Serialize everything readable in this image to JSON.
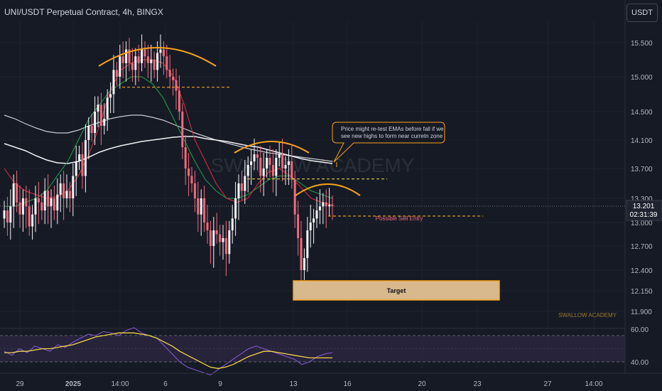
{
  "header": {
    "title": "UNI/USDT Perpetual Contract, 4h, BINGX",
    "currency_button": "USDT"
  },
  "watermark": "SWALLOW ACADEMY",
  "corner_brand": "SWALLOW ACADEMY",
  "annotations": {
    "callout": [
      "Price might re-test EMAs before fall if we",
      "see new highs to form near curretn zone"
    ],
    "sell_entry_label": "Possible Sell Entry",
    "target_label": "Target"
  },
  "price_tag": {
    "price": "13.201",
    "countdown": "02:31:39"
  },
  "colors": {
    "background": "#161a25",
    "up_candle": "#f5f6f7",
    "down_candle": "#f06a7c",
    "ema_fast": "#e3303f",
    "ema_mid": "#26a14a",
    "ema_slow": "#eef0f2",
    "arc": "#f7a21b",
    "target_fill": "#d8b98e",
    "target_border": "#f7a21b",
    "rsi": "#8a5bd8",
    "rsi_ma": "#f0d34a"
  },
  "chart_data": {
    "type": "candlestick",
    "timeframe": "4h",
    "symbol": "UNI/USDT Perpetual Contract",
    "exchange": "BINGX",
    "y_ticks": [
      "15.500",
      "15.000",
      "14.500",
      "14.100",
      "13.700",
      "13.300",
      "13.000",
      "12.700",
      "12.400",
      "12.150",
      "11.900"
    ],
    "x_ticks": [
      "29",
      "2025",
      "14:00",
      "6",
      "9",
      "13",
      "16",
      "20",
      "23",
      "27",
      "14:00"
    ],
    "last_price": 13.201,
    "levels": {
      "double_top_neckline": 14.85,
      "right_top_level": 13.56,
      "possible_sell_entry": 13.08,
      "target_zone": [
        12.08,
        12.28
      ]
    },
    "rsi_panel": {
      "ticks": [
        "60.00",
        "40.00"
      ],
      "upper": 60,
      "lower": 40
    },
    "close_path": [
      13.15,
      13.0,
      13.2,
      13.5,
      13.25,
      13.1,
      13.3,
      13.2,
      12.95,
      13.1,
      13.3,
      13.25,
      13.15,
      13.4,
      13.2,
      13.3,
      13.15,
      13.35,
      13.5,
      13.3,
      13.4,
      13.3,
      13.6,
      13.8,
      13.9,
      13.6,
      14.1,
      14.3,
      14.2,
      14.5,
      14.6,
      14.3,
      14.4,
      14.7,
      14.75,
      15.1,
      15.0,
      15.3,
      15.2,
      15.4,
      15.2,
      15.1,
      15.3,
      15.2,
      15.4,
      15.3,
      15.2,
      15.25,
      15.1,
      15.35,
      15.4,
      15.3,
      15.1,
      15.0,
      14.95,
      14.8,
      14.5,
      14.0,
      13.7,
      13.6,
      13.5,
      13.3,
      13.1,
      13.3,
      13.0,
      12.9,
      12.7,
      12.9,
      12.85,
      12.75,
      12.8,
      12.6,
      12.9,
      13.05,
      13.3,
      13.5,
      13.4,
      13.6,
      13.75,
      13.8,
      13.9,
      13.85,
      13.6,
      13.7,
      13.85,
      13.75,
      13.6,
      13.85,
      13.9,
      13.7,
      13.75,
      13.8,
      13.55,
      13.1,
      12.8,
      12.4,
      12.55,
      12.9,
      13.0,
      13.05,
      13.15,
      13.2,
      13.25,
      13.2,
      13.22,
      13.201
    ],
    "ema_fast_path": [
      13.7,
      13.5,
      13.4,
      13.35,
      13.3,
      13.32,
      13.4,
      13.6,
      13.9,
      14.3,
      14.8,
      15.1,
      15.2,
      15.25,
      15.25,
      15.2,
      15.0,
      14.6,
      14.1,
      13.8,
      13.5,
      13.3,
      13.25,
      13.3,
      13.5,
      13.65,
      13.7,
      13.6,
      13.45,
      13.3,
      13.25,
      13.22
    ],
    "ema_mid_path": [
      13.2,
      13.2,
      13.25,
      13.3,
      13.4,
      13.6,
      13.8,
      14.1,
      14.4,
      14.6,
      14.8,
      14.9,
      15.0,
      15.0,
      14.9,
      14.7,
      14.4,
      14.1,
      13.8,
      13.55,
      13.4,
      13.3,
      13.3,
      13.35,
      13.45,
      13.55,
      13.6,
      13.6,
      13.5,
      13.4,
      13.35,
      13.3
    ],
    "ema_slow_path": [
      14.05,
      14.0,
      13.95,
      13.88,
      13.82,
      13.78,
      13.77,
      13.8,
      13.86,
      13.93,
      13.98,
      14.02,
      14.05,
      14.08,
      14.1,
      14.12,
      14.14,
      14.15,
      14.15,
      14.12,
      14.1,
      14.08,
      14.05,
      14.02,
      14.0,
      13.96,
      13.92,
      13.88,
      13.84,
      13.81,
      13.79,
      13.77
    ],
    "ema_200_path": [
      14.45,
      14.4,
      14.33,
      14.27,
      14.22,
      14.2,
      14.2,
      14.24,
      14.3,
      14.35,
      14.4,
      14.43,
      14.45,
      14.45,
      14.42,
      14.38,
      14.32,
      14.26,
      14.2,
      14.15,
      14.1,
      14.06,
      14.02,
      13.98,
      13.95,
      13.92,
      13.9,
      13.88,
      13.86,
      13.84,
      13.82,
      13.8
    ],
    "rsi_values": [
      48,
      45,
      50,
      47,
      52,
      50,
      48,
      53,
      51,
      55,
      58,
      61,
      60,
      63,
      62,
      60,
      64,
      66,
      62,
      60,
      58,
      52,
      46,
      40,
      36,
      34,
      32,
      30,
      34,
      38,
      42,
      46,
      50,
      52,
      50,
      48,
      46,
      44,
      42,
      38,
      40,
      44,
      46,
      47
    ],
    "rsi_ma_values": [
      47,
      47,
      48,
      48,
      49,
      50,
      50,
      51,
      52,
      53,
      55,
      57,
      59,
      60,
      61,
      62,
      62,
      62,
      61,
      60,
      58,
      55,
      52,
      48,
      45,
      42,
      39,
      36,
      35,
      36,
      38,
      41,
      44,
      46,
      48,
      48,
      47,
      46,
      45,
      44,
      43,
      43,
      43,
      43
    ]
  }
}
